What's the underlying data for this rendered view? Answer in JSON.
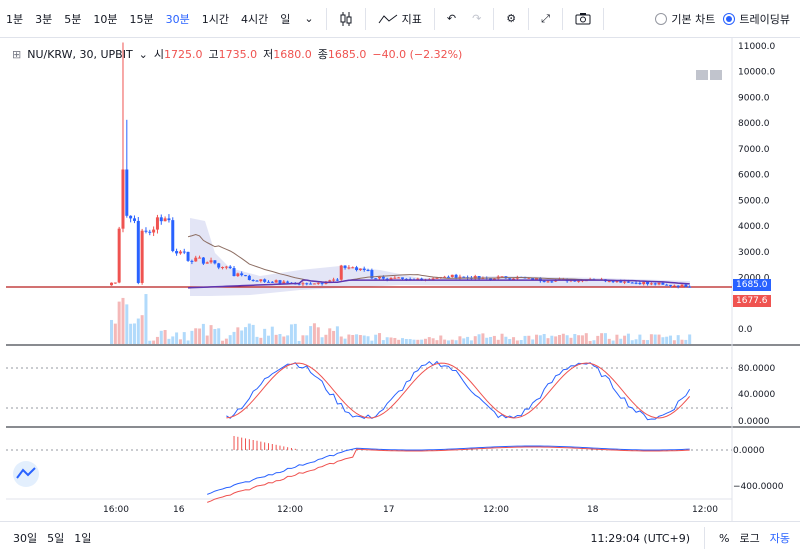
{
  "toolbar": {
    "intervals": [
      "1분",
      "3분",
      "5분",
      "10분",
      "15분",
      "30분",
      "1시간",
      "4시간",
      "일"
    ],
    "active_interval": "30분",
    "indicators_label": "지표",
    "basic_chart_label": "기본 차트",
    "trading_view_label": "트레이딩뷰"
  },
  "legend": {
    "symbol": "NU/KRW, 30, UPBIT",
    "open_label": "시",
    "open": "1725.0",
    "high_label": "고",
    "high": "1735.0",
    "low_label": "저",
    "low": "1680.0",
    "close_label": "종",
    "close": "1685.0",
    "change": "−40.0 (−2.32%)"
  },
  "price_axis": [
    "11000.0",
    "10000.0",
    "9000.0",
    "8000.0",
    "7000.0",
    "6000.0",
    "5000.0",
    "4000.0",
    "3000.0",
    "2000.0",
    "0.0"
  ],
  "price_tags": {
    "last": "1685.0",
    "ma": "1677.6"
  },
  "stoch_axis": [
    "80.0000",
    "40.0000",
    "0.0000"
  ],
  "macd_axis": [
    "0.0000",
    "−400.0000"
  ],
  "time_axis": [
    "16:00",
    "16",
    "12:00",
    "17",
    "12:00",
    "18",
    "12:00"
  ],
  "bottom": {
    "ranges": [
      "30일",
      "5일",
      "1일"
    ],
    "clock": "11:29:04 (UTC+9)",
    "percent": "%",
    "log": "로그",
    "auto": "자동"
  },
  "colors": {
    "up": "#ef5350",
    "down": "#2962ff",
    "accent": "#2962ff"
  },
  "chart_data": {
    "type": "candlestick",
    "series_hint": "NU/KRW 30m candles",
    "approx_closes": [
      1800,
      1750,
      3800,
      4300,
      3000,
      2700,
      2600,
      2400,
      2100,
      1900,
      1850,
      1800,
      1750,
      1800,
      1900,
      2400,
      2300,
      2000,
      1950,
      1900,
      1950,
      2000,
      2050,
      2000,
      1950,
      2000,
      2000,
      1950,
      1900,
      1900,
      1900,
      1950,
      1900,
      1850,
      1800,
      1750,
      1700,
      1685
    ],
    "ylim": [
      0,
      11000
    ]
  }
}
